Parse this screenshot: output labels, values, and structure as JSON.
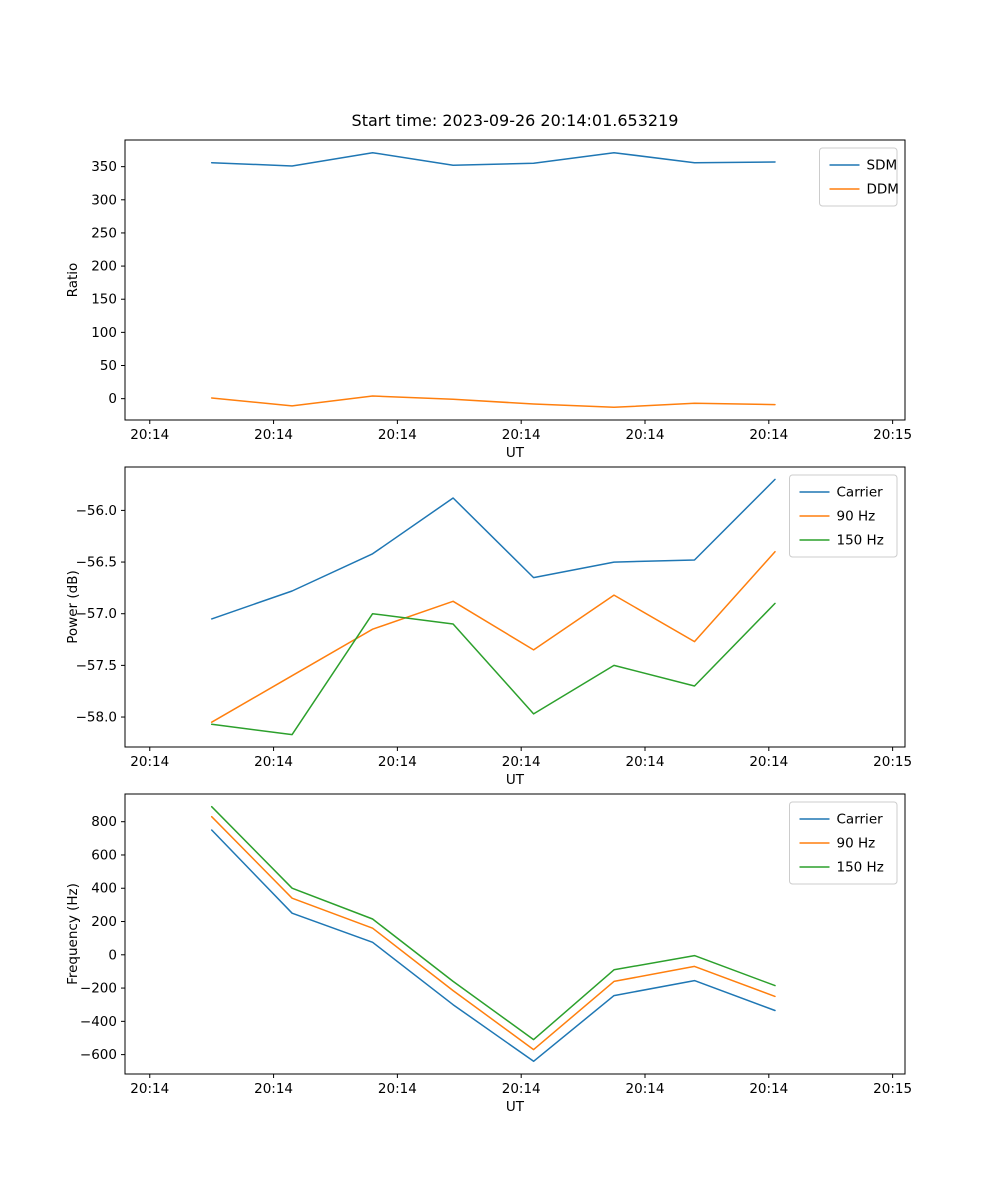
{
  "figure": {
    "background": "#ffffff",
    "title": "Start time: 2023-09-26 20:14:01.653219"
  },
  "chart_data": [
    {
      "type": "line",
      "title": "Start time: 2023-09-26 20:14:01.653219",
      "xlabel": "UT",
      "ylabel": "Ratio",
      "x": [
        5,
        11.5,
        18,
        24.5,
        31,
        37.5,
        44,
        50.5
      ],
      "xlim": [
        -2,
        61
      ],
      "xtick_values": [
        0,
        10,
        20,
        30,
        40,
        50,
        60
      ],
      "xtick_labels": [
        "20:14",
        "20:14",
        "20:14",
        "20:14",
        "20:14",
        "20:14",
        "20:15"
      ],
      "ylim": [
        -32.2,
        390.2
      ],
      "ytick_values": [
        0,
        50,
        100,
        150,
        200,
        250,
        300,
        350
      ],
      "ytick_labels": [
        "0",
        "50",
        "100",
        "150",
        "200",
        "250",
        "300",
        "350"
      ],
      "grid": false,
      "legend_position": "upper right",
      "series": [
        {
          "name": "SDM",
          "color": "#1f77b4",
          "values": [
            356,
            351,
            371,
            352,
            355,
            371,
            356,
            357
          ]
        },
        {
          "name": "DDM",
          "color": "#ff7f0e",
          "values": [
            1,
            -11,
            4,
            -1,
            -8,
            -13,
            -7,
            -9
          ]
        }
      ]
    },
    {
      "type": "line",
      "title": "",
      "xlabel": "UT",
      "ylabel": "Power (dB)",
      "x": [
        5,
        11.5,
        18,
        24.5,
        31,
        37.5,
        44,
        50.5
      ],
      "xlim": [
        -2,
        61
      ],
      "xtick_values": [
        0,
        10,
        20,
        30,
        40,
        50,
        60
      ],
      "xtick_labels": [
        "20:14",
        "20:14",
        "20:14",
        "20:14",
        "20:14",
        "20:14",
        "20:15"
      ],
      "ylim": [
        -58.29,
        -55.58
      ],
      "ytick_values": [
        -58.0,
        -57.5,
        -57.0,
        -56.5,
        -56.0
      ],
      "ytick_labels": [
        "−58.0",
        "−57.5",
        "−57.0",
        "−56.5",
        "−56.0"
      ],
      "grid": false,
      "legend_position": "upper right",
      "series": [
        {
          "name": "Carrier",
          "color": "#1f77b4",
          "values": [
            -57.05,
            -56.78,
            -56.42,
            -55.88,
            -56.65,
            -56.5,
            -56.48,
            -55.7
          ]
        },
        {
          "name": "90 Hz",
          "color": "#ff7f0e",
          "values": [
            -58.05,
            -57.6,
            -57.15,
            -56.88,
            -57.35,
            -56.82,
            -57.27,
            -56.4
          ]
        },
        {
          "name": "150 Hz",
          "color": "#2ca02c",
          "values": [
            -58.07,
            -58.17,
            -57.0,
            -57.1,
            -57.97,
            -57.5,
            -57.7,
            -56.9
          ]
        }
      ]
    },
    {
      "type": "line",
      "title": "",
      "xlabel": "UT",
      "ylabel": "Frequency (Hz)",
      "x": [
        5,
        11.5,
        18,
        24.5,
        31,
        37.5,
        44,
        50.5
      ],
      "xlim": [
        -2,
        61
      ],
      "xtick_values": [
        0,
        10,
        20,
        30,
        40,
        50,
        60
      ],
      "xtick_labels": [
        "20:14",
        "20:14",
        "20:14",
        "20:14",
        "20:14",
        "20:14",
        "20:15"
      ],
      "ylim": [
        -716.5,
        966.5
      ],
      "ytick_values": [
        -600,
        -400,
        -200,
        0,
        200,
        400,
        600,
        800
      ],
      "ytick_labels": [
        "−600",
        "−400",
        "−200",
        "0",
        "200",
        "400",
        "600",
        "800"
      ],
      "grid": false,
      "legend_position": "upper right",
      "series": [
        {
          "name": "Carrier",
          "color": "#1f77b4",
          "values": [
            750,
            250,
            75,
            -300,
            -640,
            -245,
            -155,
            -335
          ]
        },
        {
          "name": "90 Hz",
          "color": "#ff7f0e",
          "values": [
            830,
            340,
            160,
            -215,
            -570,
            -160,
            -70,
            -250
          ]
        },
        {
          "name": "150 Hz",
          "color": "#2ca02c",
          "values": [
            890,
            400,
            215,
            -160,
            -510,
            -90,
            -5,
            -185
          ]
        }
      ]
    }
  ]
}
